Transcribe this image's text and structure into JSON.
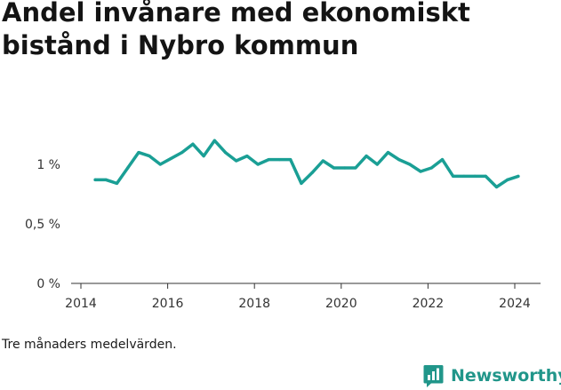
{
  "title": "Andel invånare med ekonomiskt bistånd i Nybro kommun",
  "caption": "Tre månaders medelvärden.",
  "brand": {
    "name": "Newsworthy",
    "logo_icon": "bar-chart-speech-bubble-icon"
  },
  "colors": {
    "line": "#1a9f95",
    "brand": "#21968a",
    "axis": "#333333",
    "grid": "#e6e6e6"
  },
  "chart_data": {
    "type": "line",
    "title": "Andel invånare med ekonomiskt bistånd i Nybro kommun",
    "xlabel": "",
    "ylabel": "",
    "xlim": [
      2014,
      2024.75
    ],
    "ylim": [
      0,
      1.3
    ],
    "x_ticks": [
      2014,
      2016,
      2018,
      2020,
      2022,
      2024
    ],
    "x_tick_labels": [
      "2014",
      "2016",
      "2018",
      "2020",
      "2022",
      "2024"
    ],
    "y_ticks": [
      0,
      0.5,
      1
    ],
    "y_tick_labels": [
      "0 %",
      "0,5 %",
      "1 %"
    ],
    "grid": false,
    "series": [
      {
        "name": "",
        "x": [
          2014.33,
          2014.58,
          2014.83,
          2015.08,
          2015.33,
          2015.58,
          2015.83,
          2016.08,
          2016.33,
          2016.58,
          2016.83,
          2017.08,
          2017.33,
          2017.58,
          2017.83,
          2018.08,
          2018.33,
          2018.58,
          2018.83,
          2019.08,
          2019.33,
          2019.58,
          2019.83,
          2020.08,
          2020.33,
          2020.58,
          2020.83,
          2021.08,
          2021.33,
          2021.58,
          2021.83,
          2022.08,
          2022.33,
          2022.58,
          2022.83,
          2023.08,
          2023.33,
          2023.58,
          2023.83,
          2024.08
        ],
        "values": [
          0.87,
          0.87,
          0.84,
          0.97,
          1.1,
          1.07,
          1.0,
          1.05,
          1.1,
          1.17,
          1.07,
          1.2,
          1.1,
          1.03,
          1.07,
          1.0,
          1.04,
          1.04,
          1.04,
          0.84,
          0.93,
          1.03,
          0.97,
          0.97,
          0.97,
          1.07,
          1.0,
          1.1,
          1.04,
          1.0,
          0.94,
          0.97,
          1.04,
          0.9,
          0.9,
          0.9,
          0.9,
          0.81,
          0.87,
          0.9
        ]
      }
    ]
  }
}
